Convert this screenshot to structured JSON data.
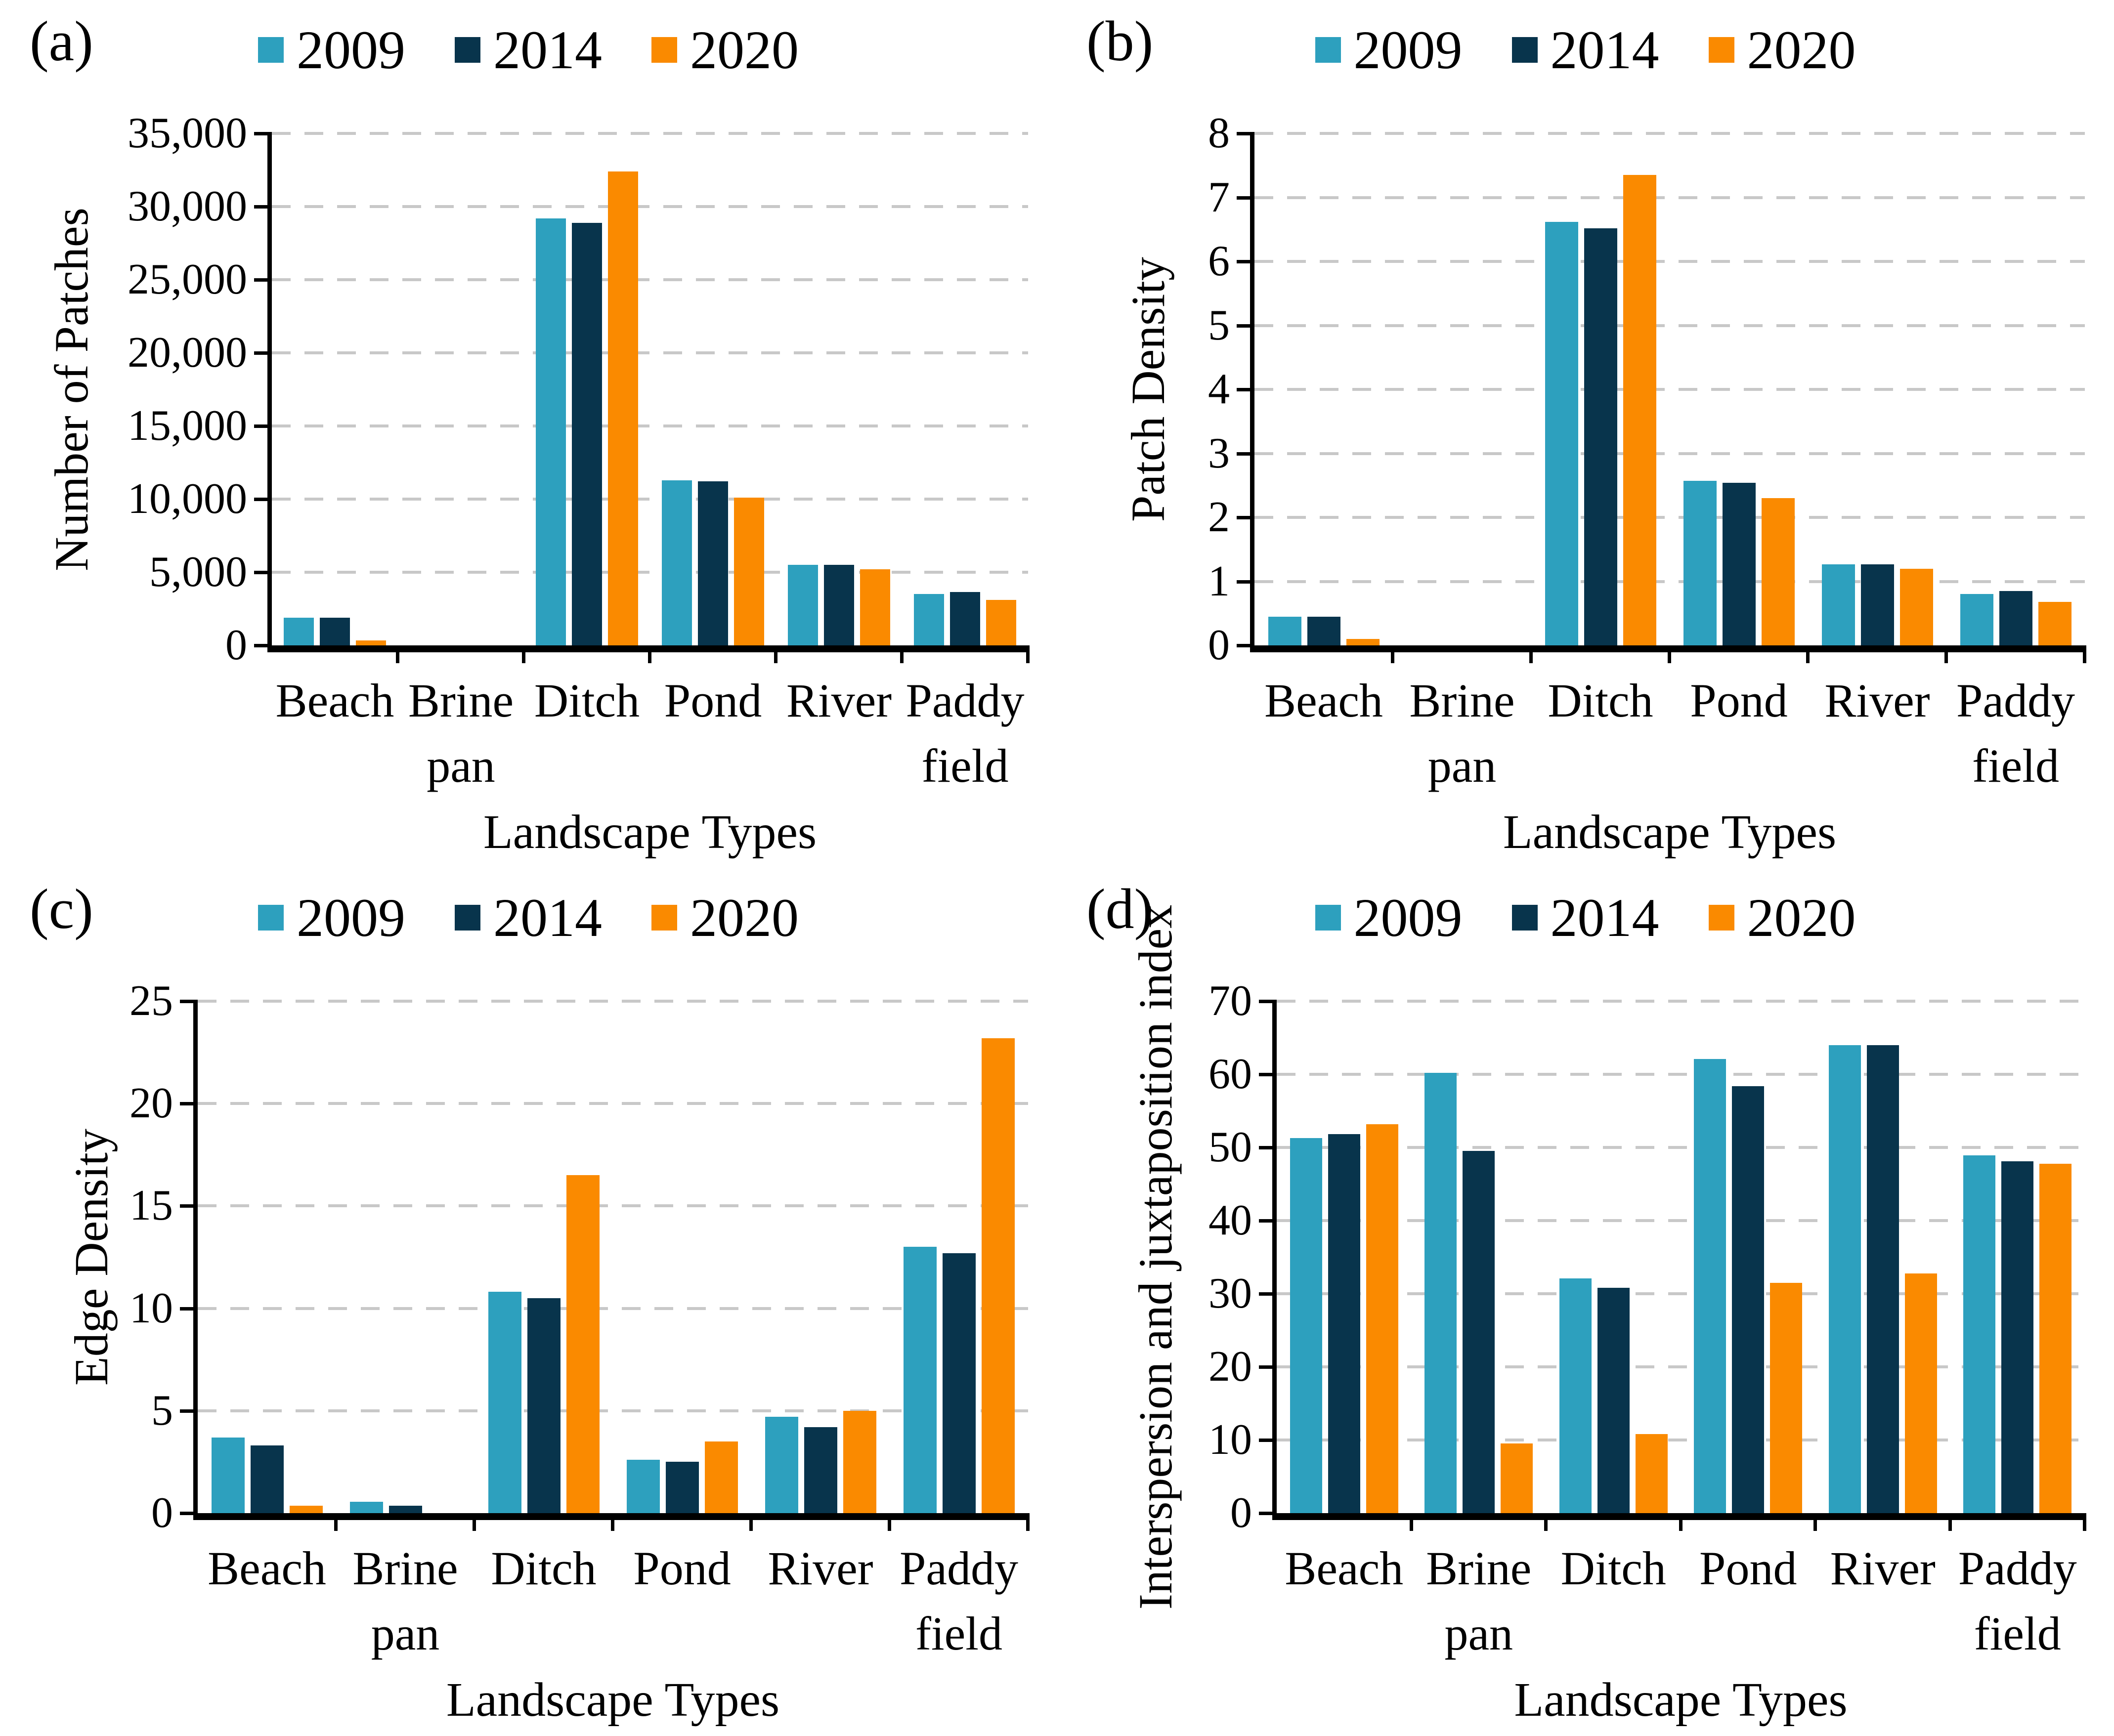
{
  "figure": {
    "xlabel": "Landscape Types",
    "categories": [
      "Beach",
      "Brine pan",
      "Ditch",
      "Pond",
      "River",
      "Paddy field"
    ],
    "colors": {
      "y2009": "#2DA0BE",
      "y2014": "#08344C",
      "y2020": "#FA8A00"
    },
    "gridline_color": "#c8c8c8",
    "legend_position": "top"
  },
  "chart_data": [
    {
      "type": "bar",
      "panel_label": "(a)",
      "title": "",
      "xlabel": "Landscape Types",
      "ylabel": "Number of Patches",
      "ylim": [
        0,
        35000
      ],
      "grid": true,
      "legend_position": "top",
      "yticks": [
        "0",
        "5,000",
        "10,000",
        "15,000",
        "20,000",
        "25,000",
        "30,000",
        "35,000"
      ],
      "categories": [
        "Beach",
        "Brine pan",
        "Ditch",
        "Pond",
        "River",
        "Paddy field"
      ],
      "series": [
        {
          "name": "2009",
          "color": "#2DA0BE",
          "values": [
            1900,
            0,
            29200,
            11300,
            5500,
            3500
          ]
        },
        {
          "name": "2014",
          "color": "#08344C",
          "values": [
            1900,
            0,
            28900,
            11200,
            5500,
            3650
          ]
        },
        {
          "name": "2020",
          "color": "#FA8A00",
          "values": [
            350,
            0,
            32400,
            10100,
            5200,
            3100
          ]
        }
      ]
    },
    {
      "type": "bar",
      "panel_label": "(b)",
      "title": "",
      "xlabel": "Landscape Types",
      "ylabel": "Patch Density",
      "ylim": [
        0,
        8
      ],
      "grid": true,
      "legend_position": "top",
      "yticks": [
        "0",
        "1",
        "2",
        "3",
        "4",
        "5",
        "6",
        "7",
        "8"
      ],
      "categories": [
        "Beach",
        "Brine pan",
        "Ditch",
        "Pond",
        "River",
        "Paddy field"
      ],
      "series": [
        {
          "name": "2009",
          "color": "#2DA0BE",
          "values": [
            0.45,
            0,
            6.62,
            2.57,
            1.27,
            0.8
          ]
        },
        {
          "name": "2014",
          "color": "#08344C",
          "values": [
            0.45,
            0,
            6.52,
            2.54,
            1.27,
            0.85
          ]
        },
        {
          "name": "2020",
          "color": "#FA8A00",
          "values": [
            0.1,
            0,
            7.35,
            2.3,
            1.2,
            0.68
          ]
        }
      ]
    },
    {
      "type": "bar",
      "panel_label": "(c)",
      "title": "",
      "xlabel": "Landscape Types",
      "ylabel": "Edge Density",
      "ylim": [
        0,
        25
      ],
      "grid": true,
      "legend_position": "top",
      "yticks": [
        "0",
        "5",
        "10",
        "15",
        "20",
        "25"
      ],
      "categories": [
        "Beach",
        "Brine pan",
        "Ditch",
        "Pond",
        "River",
        "Paddy field"
      ],
      "series": [
        {
          "name": "2009",
          "color": "#2DA0BE",
          "values": [
            3.7,
            0.55,
            10.8,
            2.6,
            4.7,
            13.0
          ]
        },
        {
          "name": "2014",
          "color": "#08344C",
          "values": [
            3.3,
            0.35,
            10.5,
            2.5,
            4.2,
            12.7
          ]
        },
        {
          "name": "2020",
          "color": "#FA8A00",
          "values": [
            0.35,
            0,
            16.5,
            3.5,
            5.0,
            23.2
          ]
        }
      ]
    },
    {
      "type": "bar",
      "panel_label": "(d)",
      "title": "",
      "xlabel": "Landscape Types",
      "ylabel": "Interspersion and juxtaposition index",
      "ylim": [
        0,
        70
      ],
      "grid": true,
      "legend_position": "top",
      "yticks": [
        "0",
        "10",
        "20",
        "30",
        "40",
        "50",
        "60",
        "70"
      ],
      "categories": [
        "Beach",
        "Brine pan",
        "Ditch",
        "Pond",
        "River",
        "Paddy field"
      ],
      "series": [
        {
          "name": "2009",
          "color": "#2DA0BE",
          "values": [
            51.3,
            60.2,
            32.1,
            62.1,
            64.0,
            48.9
          ]
        },
        {
          "name": "2014",
          "color": "#08344C",
          "values": [
            51.8,
            49.5,
            30.8,
            58.4,
            64.0,
            48.1
          ]
        },
        {
          "name": "2020",
          "color": "#FA8A00",
          "values": [
            53.2,
            9.5,
            10.8,
            31.5,
            32.8,
            47.8
          ]
        }
      ]
    }
  ]
}
